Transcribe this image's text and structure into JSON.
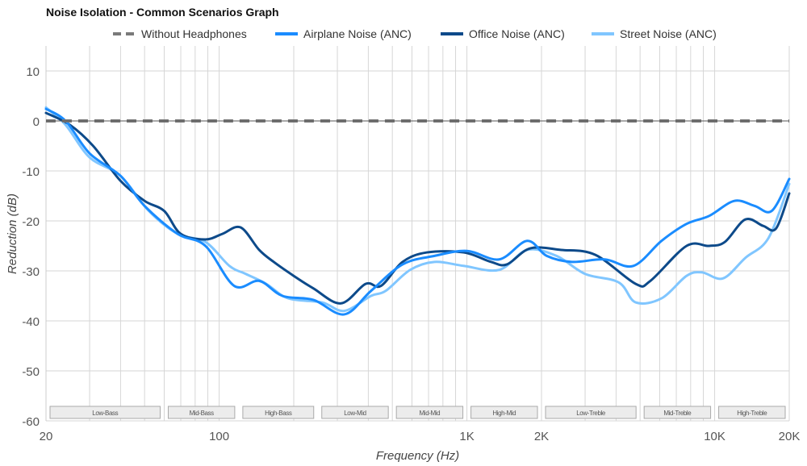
{
  "chart_data": {
    "type": "line",
    "title": "Noise Isolation - Common Scenarios Graph",
    "xlabel": "Frequency (Hz)",
    "ylabel": "Reduction (dB)",
    "x_scale": "log",
    "xlim": [
      20,
      20000
    ],
    "ylim": [
      -60,
      15
    ],
    "grid": true,
    "legend_position": "top",
    "x_ticks": [
      {
        "v": 20,
        "label": "20"
      },
      {
        "v": 100,
        "label": "100"
      },
      {
        "v": 1000,
        "label": "1K"
      },
      {
        "v": 2000,
        "label": "2K"
      },
      {
        "v": 10000,
        "label": "10K"
      },
      {
        "v": 20000,
        "label": "20K"
      }
    ],
    "y_ticks": [
      10,
      0,
      -10,
      -20,
      -30,
      -40,
      -50,
      -60
    ],
    "bands": [
      {
        "label": "Low-Bass",
        "range": [
          20,
          60
        ]
      },
      {
        "label": "Mid-Bass",
        "range": [
          60,
          120
        ]
      },
      {
        "label": "High-Bass",
        "range": [
          120,
          250
        ]
      },
      {
        "label": "Low-Mid",
        "range": [
          250,
          500
        ]
      },
      {
        "label": "Mid-Mid",
        "range": [
          500,
          1000
        ]
      },
      {
        "label": "High-Mid",
        "range": [
          1000,
          2000
        ]
      },
      {
        "label": "Low-Treble",
        "range": [
          2000,
          5000
        ]
      },
      {
        "label": "Mid-Treble",
        "range": [
          5000,
          10000
        ]
      },
      {
        "label": "High-Treble",
        "range": [
          10000,
          20000
        ]
      }
    ],
    "series": [
      {
        "name": "Without Headphones",
        "color": "#7a7a7a",
        "dashed": true,
        "x": [
          20,
          20000
        ],
        "y": [
          0,
          0
        ]
      },
      {
        "name": "Airplane Noise (ANC)",
        "color": "#1a8cff",
        "x": [
          20,
          24,
          30,
          40,
          50,
          68,
          88,
          115,
          145,
          180,
          240,
          320,
          410,
          550,
          740,
          1000,
          1350,
          1750,
          2100,
          2650,
          3600,
          4700,
          6100,
          7700,
          9500,
          12000,
          14500,
          17000,
          20000
        ],
        "y": [
          2.4,
          0,
          -6.5,
          -11,
          -17,
          -22.6,
          -25,
          -33,
          -32,
          -35,
          -35.8,
          -38.7,
          -34,
          -28.7,
          -27,
          -26,
          -27.7,
          -24,
          -27,
          -28.2,
          -27.7,
          -29,
          -24,
          -20.6,
          -19,
          -16,
          -17,
          -18,
          -11.6
        ]
      },
      {
        "name": "Office Noise (ANC)",
        "color": "#0d4a8a",
        "x": [
          20,
          25,
          31,
          40,
          50,
          60,
          70,
          88,
          103,
          122,
          145,
          166,
          200,
          240,
          310,
          390,
          450,
          550,
          690,
          970,
          1250,
          1450,
          1800,
          2400,
          3300,
          4800,
          5500,
          7700,
          9500,
          11000,
          13300,
          15700,
          17700,
          20000
        ],
        "y": [
          1.6,
          -0.8,
          -5,
          -12,
          -16,
          -18,
          -22.6,
          -23.7,
          -22.6,
          -21.3,
          -25.8,
          -28.2,
          -31,
          -33.5,
          -36.5,
          -32.6,
          -33,
          -28.2,
          -26.3,
          -26.3,
          -28.2,
          -28.7,
          -25.5,
          -25.8,
          -26.8,
          -32.6,
          -32,
          -25,
          -25,
          -24.2,
          -19.7,
          -21,
          -21.5,
          -14.5
        ]
      },
      {
        "name": "Street Noise (ANC)",
        "color": "#80c6ff",
        "x": [
          20,
          24,
          30,
          40,
          52,
          68,
          88,
          110,
          128,
          155,
          190,
          260,
          320,
          410,
          470,
          590,
          740,
          970,
          1350,
          1750,
          2300,
          3000,
          4100,
          4800,
          6100,
          7700,
          8900,
          10800,
          13300,
          16500,
          20000
        ],
        "y": [
          2.7,
          -0.8,
          -7.3,
          -11,
          -18,
          -22.6,
          -24.2,
          -29,
          -30.6,
          -32.6,
          -35.5,
          -36.3,
          -38,
          -35,
          -34,
          -29.8,
          -28.2,
          -29,
          -29.8,
          -25.8,
          -27,
          -30.6,
          -32.3,
          -36.3,
          -35.5,
          -31,
          -30.3,
          -31.5,
          -27.4,
          -23.4,
          -12.6
        ]
      }
    ]
  }
}
